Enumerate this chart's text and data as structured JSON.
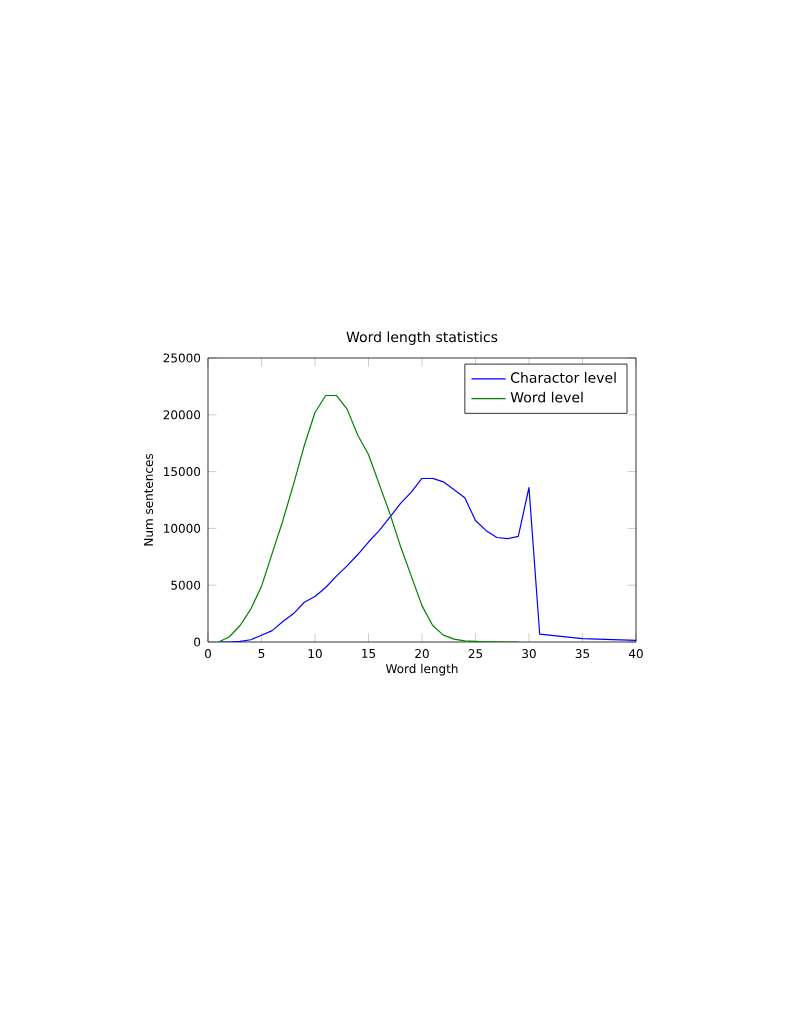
{
  "chart_data": {
    "type": "line",
    "title": "Word length statistics",
    "xlabel": "Word length",
    "ylabel": "Num sentences",
    "xlim": [
      0,
      40
    ],
    "xticks": [
      0,
      5,
      10,
      15,
      20,
      25,
      30,
      35,
      40
    ],
    "ylim": [
      0,
      25000
    ],
    "yticks": [
      0,
      5000,
      10000,
      15000,
      20000,
      25000
    ],
    "legend": "top right",
    "grid": false,
    "marker": "none",
    "line_style": "solid",
    "series": [
      {
        "name": "Charactor level",
        "color": "#0000ff",
        "x": [
          1,
          2,
          3,
          4,
          5,
          6,
          7,
          8,
          9,
          10,
          11,
          12,
          13,
          14,
          15,
          16,
          17,
          18,
          19,
          20,
          21,
          22,
          23,
          24,
          25,
          26,
          27,
          28,
          29,
          30,
          31,
          35,
          40
        ],
        "values": [
          0,
          0,
          50,
          200,
          600,
          1000,
          1800,
          2500,
          3500,
          4000,
          4800,
          5800,
          6700,
          7700,
          8800,
          9800,
          11000,
          12200,
          13200,
          14400,
          14400,
          14100,
          13400,
          12700,
          10700,
          9800,
          9200,
          9100,
          9300,
          13600,
          700,
          300,
          150
        ]
      },
      {
        "name": "Word level",
        "color": "#008000",
        "x": [
          1,
          2,
          3,
          4,
          5,
          6,
          7,
          8,
          9,
          10,
          11,
          12,
          13,
          14,
          15,
          16,
          17,
          18,
          19,
          20,
          21,
          22,
          23,
          24,
          25,
          26,
          27,
          28,
          29
        ],
        "values": [
          0,
          460,
          1450,
          2900,
          4900,
          7800,
          10700,
          13900,
          17300,
          20200,
          21700,
          21700,
          20500,
          18200,
          16500,
          13900,
          11300,
          8400,
          5800,
          3200,
          1450,
          600,
          250,
          100,
          50,
          20,
          10,
          0,
          0
        ]
      }
    ]
  }
}
